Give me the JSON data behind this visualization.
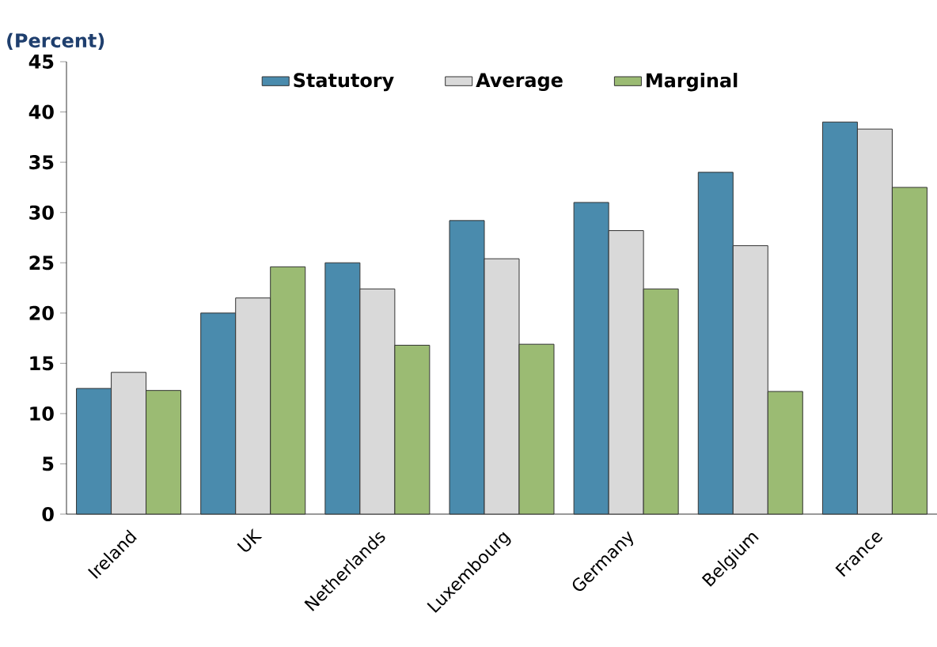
{
  "chart_data": {
    "type": "bar",
    "ylabel": "(Percent)",
    "categories": [
      "Ireland",
      "UK",
      "Netherlands",
      "Luxembourg",
      "Germany",
      "Belgium",
      "France"
    ],
    "series": [
      {
        "name": "Statutory",
        "color": "#4a8bad",
        "values": [
          12.5,
          20,
          25,
          29.2,
          31,
          34,
          39
        ]
      },
      {
        "name": "Average",
        "color": "#d9d9d9",
        "values": [
          14.1,
          21.5,
          22.4,
          25.4,
          28.2,
          26.7,
          38.3
        ]
      },
      {
        "name": "Marginal",
        "color": "#9bbb73",
        "values": [
          12.3,
          24.6,
          16.8,
          16.9,
          22.4,
          12.2,
          32.5
        ]
      }
    ],
    "ylim": [
      0,
      45
    ],
    "yticks": [
      0,
      5,
      10,
      15,
      20,
      25,
      30,
      35,
      40,
      45
    ],
    "legend": "top",
    "grid": false
  }
}
